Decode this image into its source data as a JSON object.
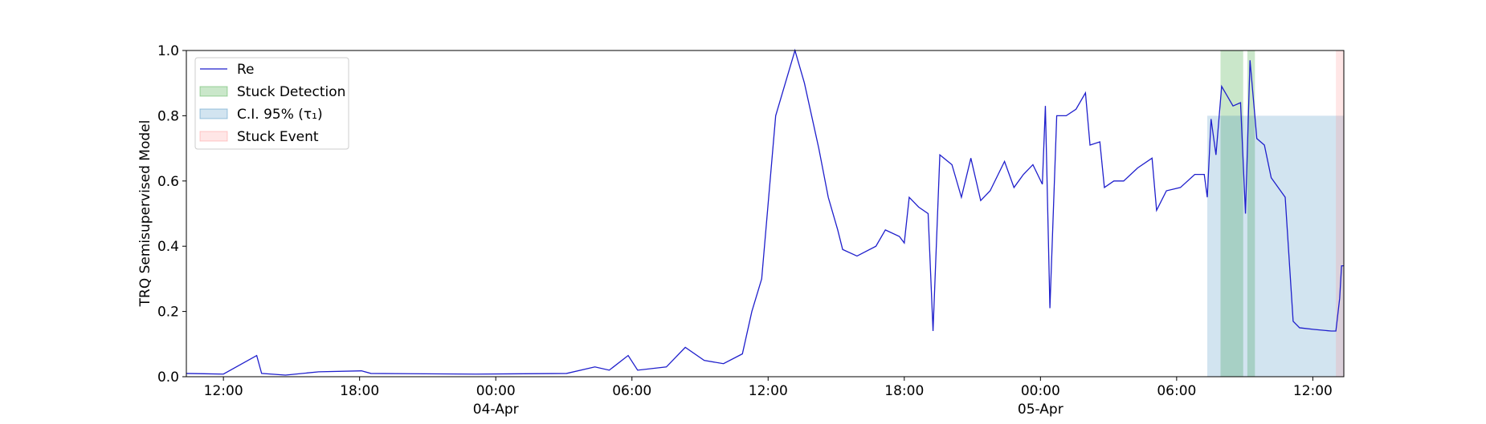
{
  "chart_data": {
    "type": "line",
    "ylabel": "TRQ Semisupervised Model",
    "xlim": [
      "1900-04-03T10:22",
      "1900-04-05T13:22"
    ],
    "xticks": [
      {
        "value": "1900-04-03T12:00",
        "label": "12:00"
      },
      {
        "value": "1900-04-03T18:00",
        "label": "18:00"
      },
      {
        "value": "1900-04-04T00:00",
        "label": "00:00\n04-Apr\n1900"
      },
      {
        "value": "1900-04-04T06:00",
        "label": "06:00"
      },
      {
        "value": "1900-04-04T12:00",
        "label": "12:00"
      },
      {
        "value": "1900-04-04T18:00",
        "label": "18:00"
      },
      {
        "value": "1900-04-05T00:00",
        "label": "00:00\n05-Apr"
      },
      {
        "value": "1900-04-05T06:00",
        "label": "06:00"
      },
      {
        "value": "1900-04-05T12:00",
        "label": "12:00"
      }
    ],
    "ylim": [
      0,
      1
    ],
    "yticks": [
      {
        "value": 0,
        "label": "0.0"
      },
      {
        "value": 0.2,
        "label": "0.2"
      },
      {
        "value": 0.4,
        "label": "0.4"
      },
      {
        "value": 0.6,
        "label": "0.6"
      },
      {
        "value": 0.8,
        "label": "0.8"
      },
      {
        "value": 1,
        "label": "1.0"
      }
    ],
    "series": [
      {
        "name": "Re",
        "color": "#1f1fcc",
        "x": [
          "1900-04-03T10:22",
          "1900-04-03T12:00",
          "1900-04-03T13:28",
          "1900-04-03T13:41",
          "1900-04-03T14:44",
          "1900-04-03T16:12",
          "1900-04-03T18:05",
          "1900-04-03T18:30",
          "1900-04-03T23:07",
          "1900-04-04T03:07",
          "1900-04-04T04:22",
          "1900-04-04T05:00",
          "1900-04-04T05:50",
          "1900-04-04T06:15",
          "1900-04-04T07:31",
          "1900-04-04T08:21",
          "1900-04-04T09:11",
          "1900-04-04T10:02",
          "1900-04-04T10:52",
          "1900-04-04T11:17",
          "1900-04-04T11:43",
          "1900-04-04T12:20",
          "1900-04-04T13:11",
          "1900-04-04T13:36",
          "1900-04-04T14:14",
          "1900-04-04T14:39",
          "1900-04-04T15:04",
          "1900-04-04T15:17",
          "1900-04-04T15:55",
          "1900-04-04T16:45",
          "1900-04-04T17:10",
          "1900-04-04T17:47",
          "1900-04-04T18:00",
          "1900-04-04T18:13",
          "1900-04-04T18:38",
          "1900-04-04T19:03",
          "1900-04-04T19:16",
          "1900-04-04T19:34",
          "1900-04-04T20:06",
          "1900-04-04T20:31",
          "1900-04-04T20:56",
          "1900-04-04T21:22",
          "1900-04-04T21:47",
          "1900-04-04T22:25",
          "1900-04-04T22:50",
          "1900-04-04T23:15",
          "1900-04-04T23:40",
          "1900-04-05T00:05",
          "1900-04-05T00:13",
          "1900-04-05T00:25",
          "1900-04-05T00:43",
          "1900-04-05T01:08",
          "1900-04-05T01:34",
          "1900-04-05T01:59",
          "1900-04-05T02:11",
          "1900-04-05T02:37",
          "1900-04-05T02:49",
          "1900-04-05T03:14",
          "1900-04-05T03:40",
          "1900-04-05T04:17",
          "1900-04-05T04:55",
          "1900-04-05T05:07",
          "1900-04-05T05:33",
          "1900-04-05T06:10",
          "1900-04-05T06:48",
          "1900-04-05T07:13",
          "1900-04-05T07:21",
          "1900-04-05T07:31",
          "1900-04-05T07:44",
          "1900-04-05T07:59",
          "1900-04-05T08:29",
          "1900-04-05T08:49",
          "1900-04-05T09:02",
          "1900-04-05T09:14",
          "1900-04-05T09:32",
          "1900-04-05T09:52",
          "1900-04-05T10:10",
          "1900-04-05T10:47",
          "1900-04-05T11:08",
          "1900-04-05T11:25",
          "1900-04-05T12:03",
          "1900-04-05T12:49",
          "1900-04-05T13:01",
          "1900-04-05T13:11",
          "1900-04-05T13:16",
          "1900-04-05T13:22"
        ],
        "values": [
          0.01,
          0.008,
          0.065,
          0.01,
          0.005,
          0.015,
          0.018,
          0.01,
          0.008,
          0.01,
          0.03,
          0.02,
          0.065,
          0.02,
          0.03,
          0.09,
          0.05,
          0.04,
          0.07,
          0.2,
          0.3,
          0.8,
          1.0,
          0.9,
          0.7,
          0.55,
          0.45,
          0.39,
          0.37,
          0.4,
          0.45,
          0.43,
          0.41,
          0.55,
          0.52,
          0.5,
          0.14,
          0.68,
          0.65,
          0.55,
          0.67,
          0.54,
          0.57,
          0.66,
          0.58,
          0.62,
          0.65,
          0.59,
          0.83,
          0.21,
          0.8,
          0.8,
          0.82,
          0.87,
          0.71,
          0.72,
          0.58,
          0.6,
          0.6,
          0.64,
          0.67,
          0.51,
          0.57,
          0.58,
          0.62,
          0.62,
          0.55,
          0.79,
          0.68,
          0.89,
          0.83,
          0.84,
          0.5,
          0.97,
          0.73,
          0.71,
          0.61,
          0.55,
          0.17,
          0.15,
          0.145,
          0.14,
          0.14,
          0.24,
          0.34,
          0.34
        ]
      }
    ],
    "spans": [
      {
        "name": "Stuck Detection",
        "color": "#2ca02c",
        "x": [
          [
            "1900-04-05T07:56",
            "1900-04-05T08:56"
          ],
          [
            "1900-04-05T09:07",
            "1900-04-05T09:27"
          ]
        ]
      },
      {
        "name": "C.I. 95% (τ₁)",
        "color": "#1f77b4",
        "x": [
          [
            "1900-04-05T07:21",
            "1900-04-05T13:22"
          ]
        ],
        "ytop": 0.8
      },
      {
        "name": "Stuck Event",
        "color": "#ff8080",
        "x": [
          [
            "1900-04-05T13:01",
            "1900-04-05T13:22"
          ]
        ]
      }
    ],
    "legend": "upper left"
  }
}
